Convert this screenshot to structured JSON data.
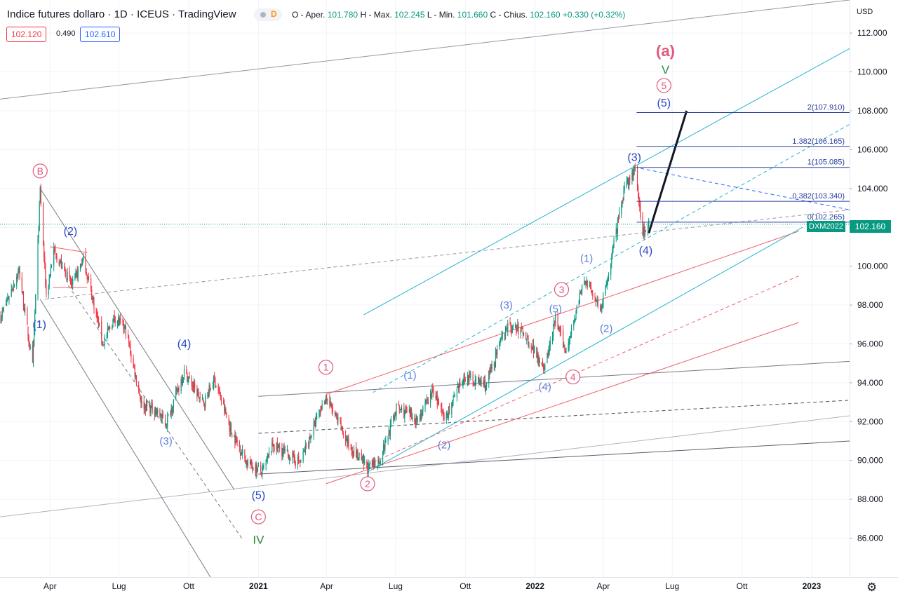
{
  "header": {
    "title": "Indice futures dollaro · 1D · ICEUS · TradingView",
    "ohlc_open_label": "O - Aper.",
    "ohlc_open": "101.780",
    "ohlc_high_label": "H - Max.",
    "ohlc_high": "102.245",
    "ohlc_low_label": "L - Min.",
    "ohlc_low": "101.660",
    "ohlc_close_label": "C - Chius.",
    "ohlc_close": "102.160",
    "ohlc_change": "+0.330 (+0.32%)",
    "indicator_letter": "D",
    "bid": "102.120",
    "spread": "0.490",
    "ask": "102.610"
  },
  "price_scale": {
    "currency": "USD",
    "last_price": "102.160",
    "symbol_tag": "DXM2022"
  },
  "colors": {
    "up": "#089981",
    "down": "#f23645",
    "wave_blue": "#2745c6",
    "wave_pink": "#e0587a",
    "cyan": "#22b5cf",
    "red_channel": "#f0606a",
    "grey": "#a0a4ab"
  },
  "chart_data": {
    "type": "candlestick",
    "x_range": [
      "2020-01-26",
      "2023-02-20"
    ],
    "y_range": [
      84.0,
      113.7
    ],
    "y_ticks": [
      "112.000",
      "110.000",
      "108.000",
      "106.000",
      "104.000",
      "102.000",
      "100.000",
      "98.000",
      "96.000",
      "94.000",
      "92.000",
      "90.000",
      "88.000",
      "86.000"
    ],
    "y_tick_values": [
      112,
      110,
      108,
      106,
      104,
      102,
      100,
      98,
      96,
      94,
      92,
      90,
      88,
      86
    ],
    "x_ticks": [
      {
        "label": "Apr",
        "date": "2020-04-01"
      },
      {
        "label": "Lug",
        "date": "2020-07-01"
      },
      {
        "label": "Ott",
        "date": "2020-10-01"
      },
      {
        "label": "2021",
        "date": "2021-01-01",
        "bold": true
      },
      {
        "label": "Apr",
        "date": "2021-04-01"
      },
      {
        "label": "Lug",
        "date": "2021-07-01"
      },
      {
        "label": "Ott",
        "date": "2021-10-01"
      },
      {
        "label": "2022",
        "date": "2022-01-01",
        "bold": true
      },
      {
        "label": "Apr",
        "date": "2022-04-01"
      },
      {
        "label": "Lug",
        "date": "2022-07-01"
      },
      {
        "label": "Ott",
        "date": "2022-10-01"
      },
      {
        "label": "2023",
        "date": "2023-01-01",
        "bold": true
      }
    ],
    "price_path": [
      [
        "2020-01-26",
        97.3
      ],
      [
        "2020-02-20",
        99.8
      ],
      [
        "2020-03-09",
        94.8
      ],
      [
        "2020-03-19",
        103.9
      ],
      [
        "2020-03-27",
        98.5
      ],
      [
        "2020-04-06",
        100.8
      ],
      [
        "2020-04-30",
        99.0
      ],
      [
        "2020-05-15",
        100.4
      ],
      [
        "2020-06-10",
        96.0
      ],
      [
        "2020-06-25",
        97.4
      ],
      [
        "2020-07-10",
        96.7
      ],
      [
        "2020-07-31",
        92.9
      ],
      [
        "2020-08-18",
        92.6
      ],
      [
        "2020-09-01",
        91.9
      ],
      [
        "2020-09-25",
        94.6
      ],
      [
        "2020-10-20",
        92.9
      ],
      [
        "2020-11-04",
        94.2
      ],
      [
        "2020-11-25",
        91.6
      ],
      [
        "2020-12-17",
        89.9
      ],
      [
        "2021-01-06",
        89.4
      ],
      [
        "2021-01-20",
        90.8
      ],
      [
        "2021-02-25",
        89.9
      ],
      [
        "2021-03-31",
        93.3
      ],
      [
        "2021-04-30",
        90.8
      ],
      [
        "2021-05-25",
        89.6
      ],
      [
        "2021-06-10",
        90.0
      ],
      [
        "2021-07-02",
        92.7
      ],
      [
        "2021-07-30",
        92.1
      ],
      [
        "2021-08-20",
        93.6
      ],
      [
        "2021-09-03",
        92.1
      ],
      [
        "2021-09-30",
        94.3
      ],
      [
        "2021-10-28",
        93.9
      ],
      [
        "2021-11-24",
        96.9
      ],
      [
        "2021-12-15",
        96.7
      ],
      [
        "2022-01-14",
        94.8
      ],
      [
        "2022-01-28",
        97.3
      ],
      [
        "2022-02-10",
        95.6
      ],
      [
        "2022-03-07",
        99.3
      ],
      [
        "2022-03-30",
        97.8
      ],
      [
        "2022-04-28",
        103.8
      ],
      [
        "2022-05-12",
        105.0
      ],
      [
        "2022-05-23",
        101.9
      ],
      [
        "2022-05-27",
        101.7
      ],
      [
        "2022-05-31",
        102.2
      ]
    ],
    "fib_levels": [
      {
        "label": "2(107.910)",
        "value": 107.91
      },
      {
        "label": "1.382(106.165)",
        "value": 106.165
      },
      {
        "label": "1(105.085)",
        "value": 105.085
      },
      {
        "label": "0.382(103.340)",
        "value": 103.34
      },
      {
        "label": "0(102.265)",
        "value": 102.265
      }
    ],
    "wave_labels": [
      {
        "text": "B",
        "date": "2020-03-19",
        "y": 104.9,
        "style": "pink-circle"
      },
      {
        "text": "(2)",
        "date": "2020-04-28",
        "y": 101.8,
        "style": "blue"
      },
      {
        "text": "(1)",
        "date": "2020-03-18",
        "y": 97.0,
        "style": "blue"
      },
      {
        "text": "(4)",
        "date": "2020-09-25",
        "y": 96.0,
        "style": "blue"
      },
      {
        "text": "(3)",
        "date": "2020-09-01",
        "y": 91.0,
        "style": "lightblue"
      },
      {
        "text": "(5)",
        "date": "2021-01-01",
        "y": 88.2,
        "style": "blue"
      },
      {
        "text": "C",
        "date": "2021-01-01",
        "y": 87.1,
        "style": "pink-circle"
      },
      {
        "text": "IV",
        "date": "2021-01-01",
        "y": 85.9,
        "style": "green"
      },
      {
        "text": "1",
        "date": "2021-03-31",
        "y": 94.8,
        "style": "pink-circle"
      },
      {
        "text": "2",
        "date": "2021-05-25",
        "y": 88.8,
        "style": "pink-circle"
      },
      {
        "text": "(1)",
        "date": "2021-07-20",
        "y": 94.4,
        "style": "lightblue"
      },
      {
        "text": "(2)",
        "date": "2021-09-03",
        "y": 90.8,
        "style": "lightblue"
      },
      {
        "text": "(3)",
        "date": "2021-11-24",
        "y": 98.0,
        "style": "lightblue"
      },
      {
        "text": "(4)",
        "date": "2022-01-14",
        "y": 93.8,
        "style": "lightblue"
      },
      {
        "text": "(5)",
        "date": "2022-01-28",
        "y": 97.8,
        "style": "lightblue"
      },
      {
        "text": "3",
        "date": "2022-02-05",
        "y": 98.8,
        "style": "pink-circle"
      },
      {
        "text": "4",
        "date": "2022-02-20",
        "y": 94.3,
        "style": "pink-circle"
      },
      {
        "text": "(1)",
        "date": "2022-03-10",
        "y": 100.4,
        "style": "lightblue"
      },
      {
        "text": "(2)",
        "date": "2022-04-05",
        "y": 96.8,
        "style": "lightblue"
      },
      {
        "text": "(3)",
        "date": "2022-05-12",
        "y": 105.6,
        "style": "blue"
      },
      {
        "text": "(4)",
        "date": "2022-05-27",
        "y": 100.8,
        "style": "blue"
      },
      {
        "text": "(5)",
        "date": "2022-06-20",
        "y": 108.4,
        "style": "blue"
      },
      {
        "text": "5",
        "date": "2022-06-20",
        "y": 109.3,
        "style": "pink-circle"
      },
      {
        "text": "V",
        "date": "2022-06-22",
        "y": 110.1,
        "style": "green"
      },
      {
        "text": "(a)",
        "date": "2022-06-22",
        "y": 111.0,
        "style": "red-bold"
      }
    ]
  }
}
